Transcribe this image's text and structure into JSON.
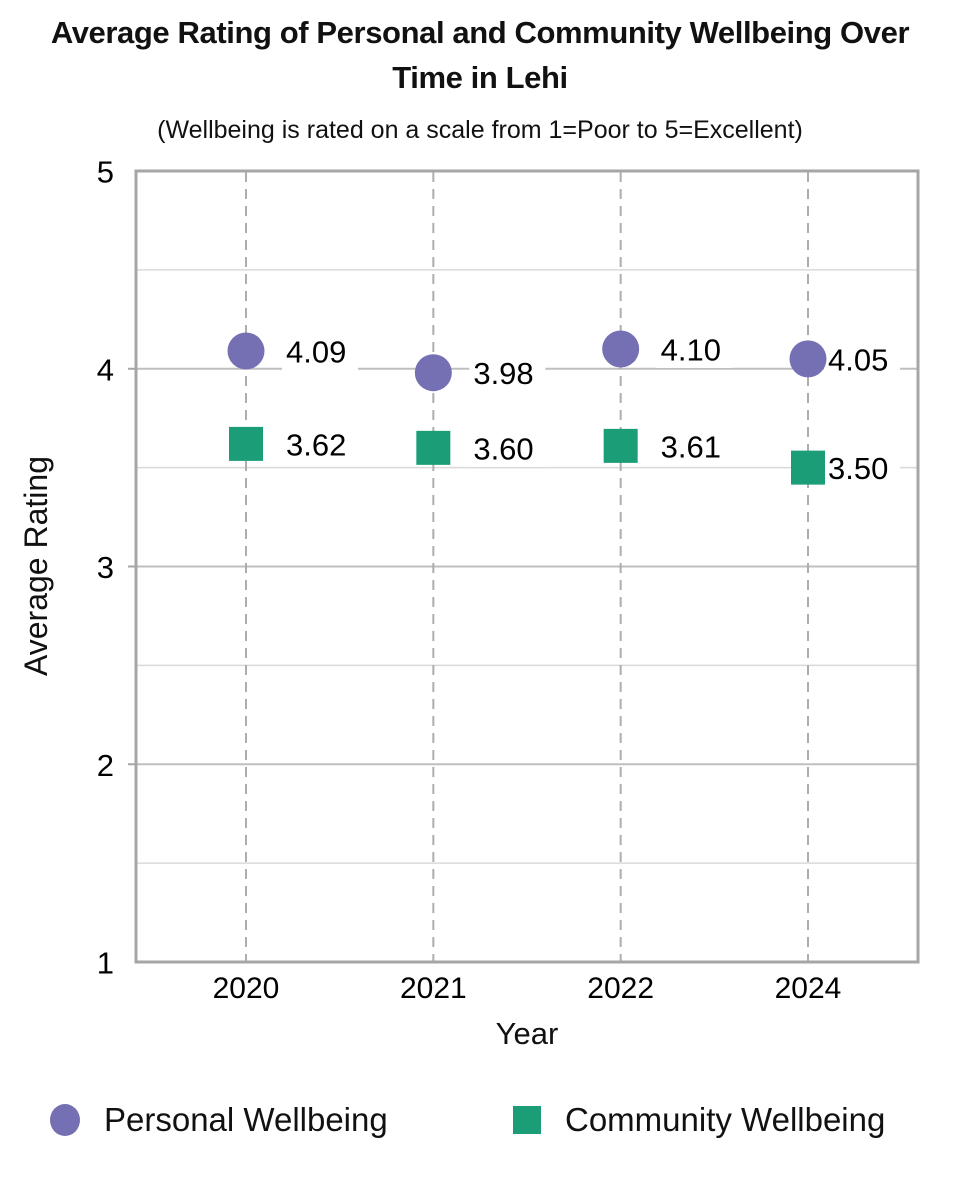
{
  "title": "Average Rating of Personal and Community Wellbeing Over Time in Lehi",
  "subtitle": "(Wellbeing is rated on a scale from 1=Poor to 5=Excellent)",
  "colors": {
    "personal": "#7570B3",
    "community": "#1B9E77",
    "grid_major": "#BFBFBF",
    "grid_minor": "#D9D9D9",
    "grid_dashed": "#ADADAD",
    "axis_border": "#A6A6A6",
    "label_text": "#000000",
    "background": "#FFFFFF"
  },
  "chart_data": {
    "type": "scatter",
    "categories": [
      "2020",
      "2021",
      "2022",
      "2024"
    ],
    "series": [
      {
        "name": "Personal Wellbeing",
        "marker": "circle",
        "color": "#7570B3",
        "values": [
          4.09,
          3.98,
          4.1,
          4.05
        ],
        "labels": [
          "4.09",
          "3.98",
          "4.10",
          "4.05"
        ]
      },
      {
        "name": "Community Wellbeing",
        "marker": "square",
        "color": "#1B9E77",
        "values": [
          3.62,
          3.6,
          3.61,
          3.5
        ],
        "labels": [
          "3.62",
          "3.60",
          "3.61",
          "3.50"
        ]
      }
    ],
    "xlabel": "Year",
    "ylabel": "Average Rating",
    "ylim": [
      1,
      5
    ],
    "yticks": [
      1,
      2,
      3,
      4,
      5
    ],
    "ytick_labels": [
      "1",
      "2",
      "3",
      "4",
      "5"
    ],
    "grid": "horizontal solid every 0.5; vertical dashed at each category",
    "legend_position": "bottom"
  }
}
